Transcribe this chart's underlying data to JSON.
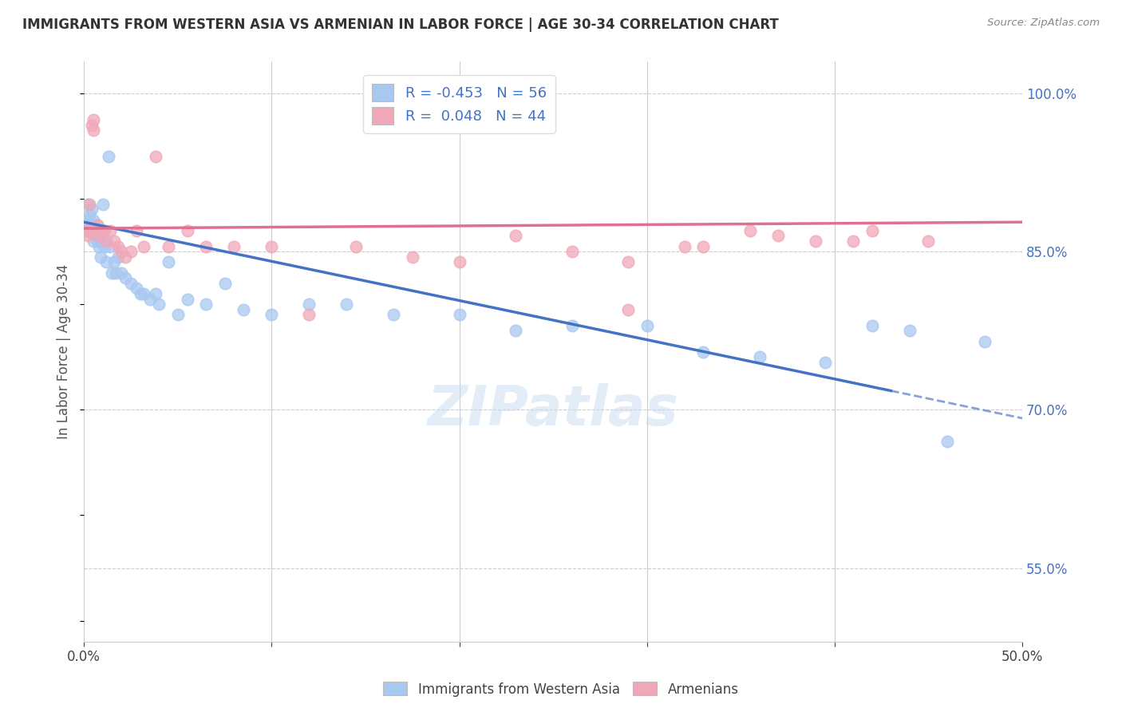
{
  "title": "IMMIGRANTS FROM WESTERN ASIA VS ARMENIAN IN LABOR FORCE | AGE 30-34 CORRELATION CHART",
  "source": "Source: ZipAtlas.com",
  "ylabel": "In Labor Force | Age 30-34",
  "xlim": [
    0.0,
    0.5
  ],
  "ylim": [
    0.48,
    1.03
  ],
  "xticks": [
    0.0,
    0.1,
    0.2,
    0.3,
    0.4,
    0.5
  ],
  "xticklabels": [
    "0.0%",
    "",
    "",
    "",
    "",
    "50.0%"
  ],
  "ytick_right": [
    1.0,
    0.85,
    0.7,
    0.55
  ],
  "ytick_right_labels": [
    "100.0%",
    "85.0%",
    "70.0%",
    "55.0%"
  ],
  "grid_color": "#cccccc",
  "background_color": "#ffffff",
  "blue_color": "#A8C8F0",
  "pink_color": "#F0A8B8",
  "blue_line_color": "#4472C4",
  "pink_line_color": "#E07090",
  "blue_R": -0.453,
  "blue_N": 56,
  "pink_R": 0.048,
  "pink_N": 44,
  "watermark": "ZIPatlas",
  "legend_label_blue": "Immigrants from Western Asia",
  "legend_label_pink": "Armenians",
  "blue_points_x": [
    0.001,
    0.002,
    0.002,
    0.003,
    0.003,
    0.004,
    0.004,
    0.005,
    0.005,
    0.006,
    0.006,
    0.007,
    0.007,
    0.008,
    0.008,
    0.009,
    0.01,
    0.01,
    0.011,
    0.012,
    0.013,
    0.014,
    0.015,
    0.016,
    0.017,
    0.018,
    0.02,
    0.022,
    0.025,
    0.028,
    0.03,
    0.032,
    0.035,
    0.038,
    0.04,
    0.045,
    0.05,
    0.055,
    0.065,
    0.075,
    0.085,
    0.1,
    0.12,
    0.14,
    0.165,
    0.2,
    0.23,
    0.26,
    0.3,
    0.33,
    0.36,
    0.395,
    0.42,
    0.44,
    0.46,
    0.48
  ],
  "blue_points_y": [
    0.88,
    0.875,
    0.895,
    0.87,
    0.885,
    0.87,
    0.89,
    0.86,
    0.88,
    0.865,
    0.87,
    0.875,
    0.86,
    0.855,
    0.86,
    0.845,
    0.86,
    0.895,
    0.855,
    0.84,
    0.94,
    0.855,
    0.83,
    0.84,
    0.83,
    0.845,
    0.83,
    0.825,
    0.82,
    0.815,
    0.81,
    0.81,
    0.805,
    0.81,
    0.8,
    0.84,
    0.79,
    0.805,
    0.8,
    0.82,
    0.795,
    0.79,
    0.8,
    0.8,
    0.79,
    0.79,
    0.775,
    0.78,
    0.78,
    0.755,
    0.75,
    0.745,
    0.78,
    0.775,
    0.67,
    0.765
  ],
  "pink_points_x": [
    0.001,
    0.002,
    0.002,
    0.003,
    0.004,
    0.005,
    0.005,
    0.006,
    0.007,
    0.008,
    0.009,
    0.01,
    0.011,
    0.012,
    0.014,
    0.016,
    0.018,
    0.02,
    0.022,
    0.025,
    0.028,
    0.032,
    0.038,
    0.045,
    0.055,
    0.065,
    0.08,
    0.1,
    0.12,
    0.145,
    0.175,
    0.2,
    0.23,
    0.26,
    0.29,
    0.32,
    0.355,
    0.39,
    0.42,
    0.45,
    0.29,
    0.33,
    0.37,
    0.41
  ],
  "pink_points_y": [
    0.87,
    0.865,
    0.87,
    0.895,
    0.97,
    0.975,
    0.965,
    0.87,
    0.875,
    0.865,
    0.87,
    0.87,
    0.87,
    0.86,
    0.87,
    0.86,
    0.855,
    0.85,
    0.845,
    0.85,
    0.87,
    0.855,
    0.94,
    0.855,
    0.87,
    0.855,
    0.855,
    0.855,
    0.79,
    0.855,
    0.845,
    0.84,
    0.865,
    0.85,
    0.84,
    0.855,
    0.87,
    0.86,
    0.87,
    0.86,
    0.795,
    0.855,
    0.865,
    0.86
  ]
}
